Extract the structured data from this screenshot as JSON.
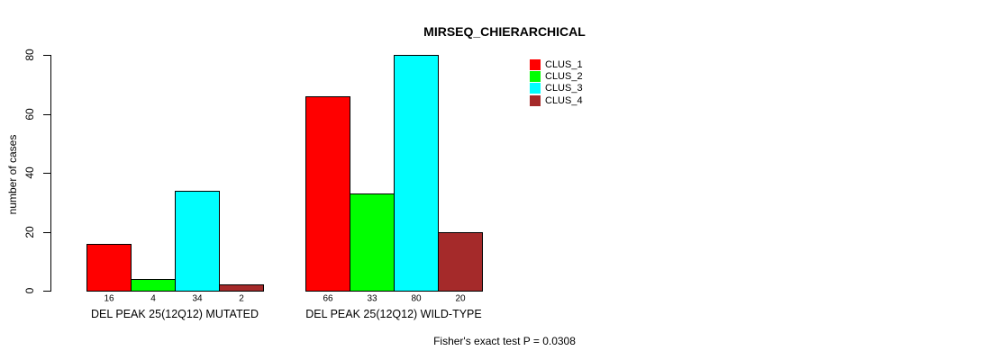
{
  "chart_data": {
    "type": "bar",
    "title": "MIRSEQ_CHIERARCHICAL",
    "ylabel": "number of cases",
    "xlabel": "",
    "footnote": "Fisher's exact test P = 0.0308",
    "ylim": [
      0,
      80
    ],
    "yticks": [
      0,
      20,
      40,
      60,
      80
    ],
    "grid": false,
    "legend_position": "top-right",
    "show_value_labels": true,
    "categories": [
      "DEL PEAK 25(12Q12) MUTATED",
      "DEL PEAK 25(12Q12) WILD-TYPE"
    ],
    "series": [
      {
        "name": "CLUS_1",
        "color": "#FF0000",
        "values": [
          16,
          66
        ]
      },
      {
        "name": "CLUS_2",
        "color": "#00FF00",
        "values": [
          4,
          33
        ]
      },
      {
        "name": "CLUS_3",
        "color": "#00FFFF",
        "values": [
          34,
          80
        ]
      },
      {
        "name": "CLUS_4",
        "color": "#A52A2A",
        "values": [
          2,
          20
        ]
      }
    ]
  }
}
